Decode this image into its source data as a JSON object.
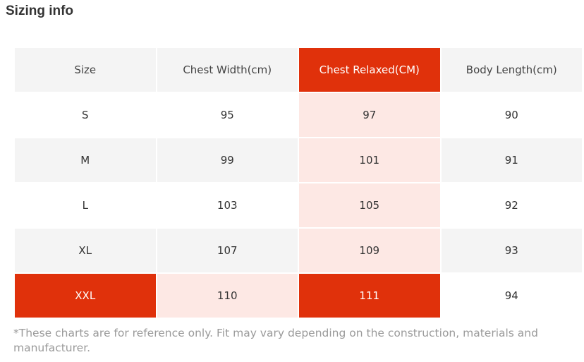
{
  "title": "Sizing info",
  "columns": [
    "Size",
    "Chest Width(cm)",
    "Chest Relaxed(CM)",
    "Body Length(cm)"
  ],
  "rows": [
    [
      "S",
      "95",
      "97",
      "90"
    ],
    [
      "M",
      "99",
      "101",
      "91"
    ],
    [
      "L",
      "103",
      "105",
      "92"
    ],
    [
      "XL",
      "107",
      "109",
      "93"
    ],
    [
      "XXL",
      "110",
      "111",
      "94"
    ]
  ],
  "note": "*These charts are for reference only. Fit may vary depending on the construction, materials and manufacturer.",
  "colors": {
    "highlight": "#e0310b",
    "highlight_tint": "#fde8e4",
    "row_alt": "#f4f4f4"
  }
}
